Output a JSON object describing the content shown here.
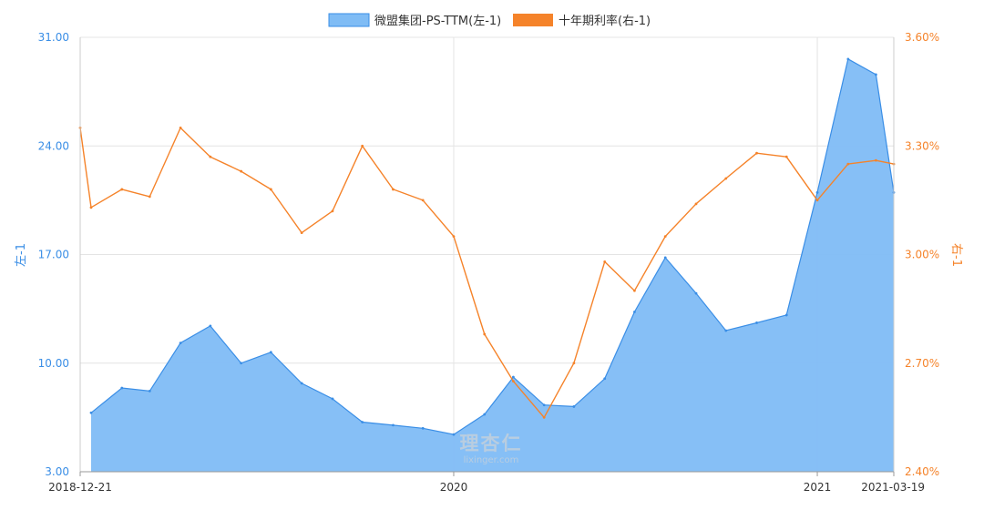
{
  "chart_data": {
    "type": "area",
    "title": "",
    "x_dates": [
      "2018-12-21",
      "2019-01-01",
      "2019-02-01",
      "2019-03-01",
      "2019-04-01",
      "2019-05-01",
      "2019-06-01",
      "2019-07-01",
      "2019-08-01",
      "2019-09-01",
      "2019-10-01",
      "2019-11-01",
      "2019-12-01",
      "2020-01-01",
      "2020-02-01",
      "2020-03-01",
      "2020-04-01",
      "2020-05-01",
      "2020-06-01",
      "2020-07-01",
      "2020-08-01",
      "2020-09-01",
      "2020-10-01",
      "2020-11-01",
      "2020-12-01",
      "2021-01-01",
      "2021-02-01",
      "2021-03-01",
      "2021-03-19"
    ],
    "series": [
      {
        "name": "微盟集团-PS-TTM(左-1)",
        "axis": "left",
        "color": "#3a8ee6",
        "fill": "#7fbcf5",
        "values": [
          null,
          6.8,
          8.4,
          8.2,
          11.3,
          12.4,
          10.0,
          10.7,
          8.7,
          7.7,
          6.2,
          6.0,
          5.8,
          5.4,
          6.7,
          9.1,
          7.3,
          7.2,
          9.0,
          13.3,
          16.8,
          14.5,
          12.1,
          12.6,
          13.1,
          21.0,
          29.6,
          28.6,
          21.0
        ]
      },
      {
        "name": "十年期利率(右-1)",
        "axis": "right",
        "color": "#f5832a",
        "values": [
          3.35,
          3.13,
          3.18,
          3.16,
          3.35,
          3.27,
          3.23,
          3.18,
          3.06,
          3.12,
          3.3,
          3.18,
          3.15,
          3.05,
          2.78,
          2.65,
          2.55,
          2.7,
          2.98,
          2.9,
          3.05,
          3.14,
          3.21,
          3.28,
          3.27,
          3.15,
          3.25,
          3.26,
          3.25
        ]
      }
    ],
    "yleft": {
      "label": "左-1",
      "min": 3.0,
      "max": 31.0,
      "ticks": [
        "3.00",
        "10.00",
        "17.00",
        "24.00",
        "31.00"
      ]
    },
    "yright": {
      "label": "右-1",
      "min": 2.4,
      "max": 3.6,
      "ticks": [
        "2.40%",
        "2.70%",
        "3.00%",
        "3.30%",
        "3.60%"
      ]
    },
    "xticks": [
      {
        "date": "2018-12-21",
        "label": "2018-12-21"
      },
      {
        "date": "2020-01-01",
        "label": "2020"
      },
      {
        "date": "2021-01-01",
        "label": "2021"
      },
      {
        "date": "2021-03-19",
        "label": "2021-03-19"
      }
    ],
    "grid": true,
    "legend_position": "top-center"
  },
  "watermark": {
    "text_cn": "理杏仁",
    "text_en": "lixinger.com"
  }
}
